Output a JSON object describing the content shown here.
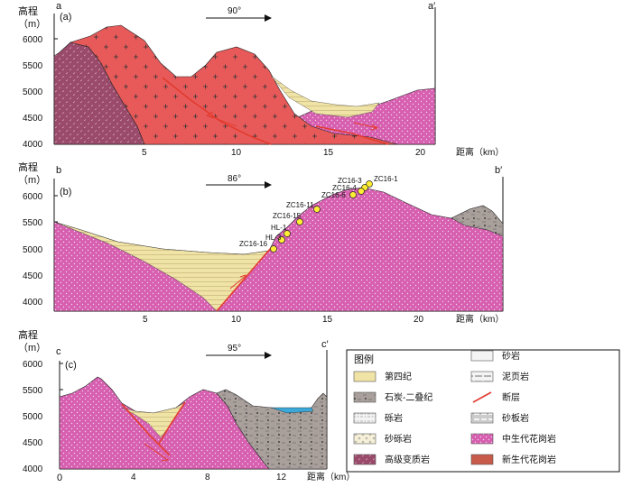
{
  "elevation_unit_label": "高程",
  "elevation_unit": "（m）",
  "distance_label": "距离（km）",
  "sections": [
    {
      "id": "a",
      "panel": "(a)",
      "start": "a",
      "end": "a′",
      "bearing": "90°",
      "y_ticks": [
        "6000",
        "5500",
        "5000",
        "4500",
        "4000"
      ],
      "x_ticks": [
        "5",
        "10",
        "15",
        "20"
      ]
    },
    {
      "id": "b",
      "panel": "(b)",
      "start": "b",
      "end": "b′",
      "bearing": "86°",
      "y_ticks": [
        "6000",
        "5500",
        "5000",
        "4500",
        "4000"
      ],
      "x_ticks": [
        "5",
        "10",
        "15",
        "20"
      ],
      "sample_points": [
        "ZC16-1",
        "ZC16-3",
        "ZC16-4",
        "ZC16-6",
        "ZC16-11",
        "ZC16-15",
        "HL-1",
        "HL-3",
        "ZC16-16"
      ]
    },
    {
      "id": "c",
      "panel": "(c)",
      "start": "c",
      "end": "c′",
      "bearing": "95°",
      "y_ticks": [
        "6000",
        "5500",
        "5000",
        "4500",
        "4000"
      ],
      "x_ticks": [
        "0",
        "4",
        "8",
        "12"
      ]
    }
  ],
  "legend": {
    "title": "图例",
    "items": [
      {
        "label": "砂岩",
        "fill": "#f4f4f4"
      },
      {
        "label": "第四纪",
        "fill": "#f0e3a6"
      },
      {
        "label": "泥页岩",
        "fill": "#f4f4f4"
      },
      {
        "label": "石炭-二叠纪",
        "fill": "#a9a09c"
      },
      {
        "label": "断层",
        "fill": "#e23b2e"
      },
      {
        "label": "砾岩",
        "fill": "#f4f4f4"
      },
      {
        "label": "砂板岩",
        "fill": "#f4f4f4"
      },
      {
        "label": "砂砾岩",
        "fill": "#f6f0d8"
      },
      {
        "label": "中生代花岗岩",
        "fill": "#d75fb0"
      },
      {
        "label": "高级变质岩",
        "fill": "#9a4a6a"
      },
      {
        "label": "新生代花岗岩",
        "fill": "#c85a4a"
      }
    ]
  },
  "colors": {
    "quaternary": "#f0e3a6",
    "carb_permian": "#a9a09c",
    "mesozoic_granite": "#d75fb0",
    "cenozoic_granite": "#e85a5a",
    "metamorphic": "#9a4a6a",
    "fault": "#e23b2e",
    "water": "#3aa8d8"
  }
}
